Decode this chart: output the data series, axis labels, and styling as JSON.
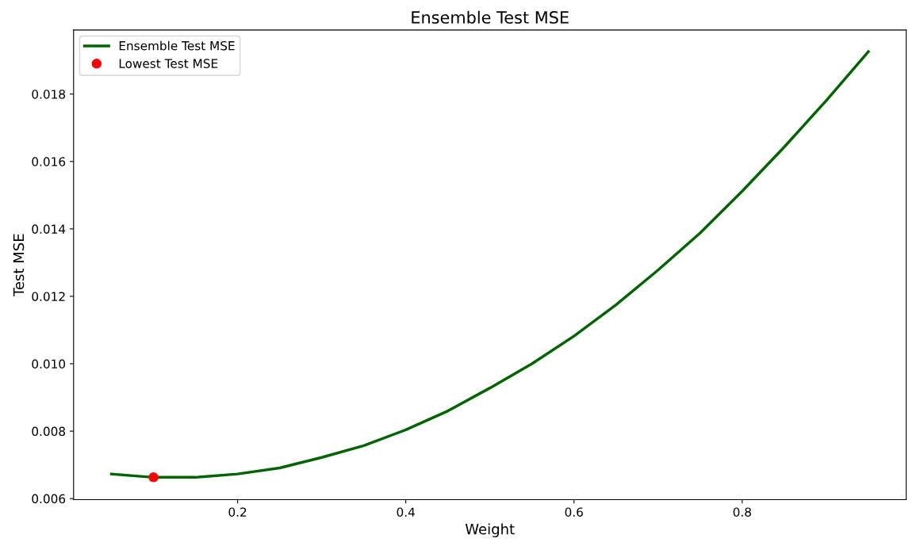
{
  "chart_data": {
    "type": "line",
    "title": "Ensemble Test MSE",
    "xlabel": "Weight",
    "ylabel": "Test MSE",
    "x": [
      0.05,
      0.1,
      0.15,
      0.2,
      0.25,
      0.3,
      0.35,
      0.4,
      0.45,
      0.5,
      0.55,
      0.6,
      0.65,
      0.7,
      0.75,
      0.8,
      0.85,
      0.9,
      0.95
    ],
    "series": [
      {
        "name": "Ensemble Test MSE",
        "color": "#006400",
        "values": [
          0.00673,
          0.00663,
          0.00663,
          0.00673,
          0.00691,
          0.00722,
          0.00757,
          0.00804,
          0.0086,
          0.00928,
          0.01,
          0.01082,
          0.01175,
          0.01278,
          0.01388,
          0.01512,
          0.01643,
          0.01781,
          0.01926
        ]
      },
      {
        "name": "Lowest Test MSE",
        "type": "scatter",
        "color": "#ff0000",
        "x": [
          0.1
        ],
        "values": [
          0.00663
        ],
        "marker": "circle"
      }
    ],
    "xlim": [
      0.005,
      0.995
    ],
    "ylim": [
      0.00597,
      0.0199
    ],
    "xticks": [
      0.2,
      0.4,
      0.6,
      0.8
    ],
    "yticks": [
      {
        "value": 0.006,
        "label": "0.006"
      },
      {
        "value": 0.008,
        "label": "0.008"
      },
      {
        "value": 0.01,
        "label": "0.010"
      },
      {
        "value": 0.012,
        "label": "0.012"
      },
      {
        "value": 0.014,
        "label": "0.014"
      },
      {
        "value": 0.016,
        "label": "0.016"
      },
      {
        "value": 0.018,
        "label": "0.018"
      }
    ],
    "grid": false,
    "legend": "top left"
  }
}
